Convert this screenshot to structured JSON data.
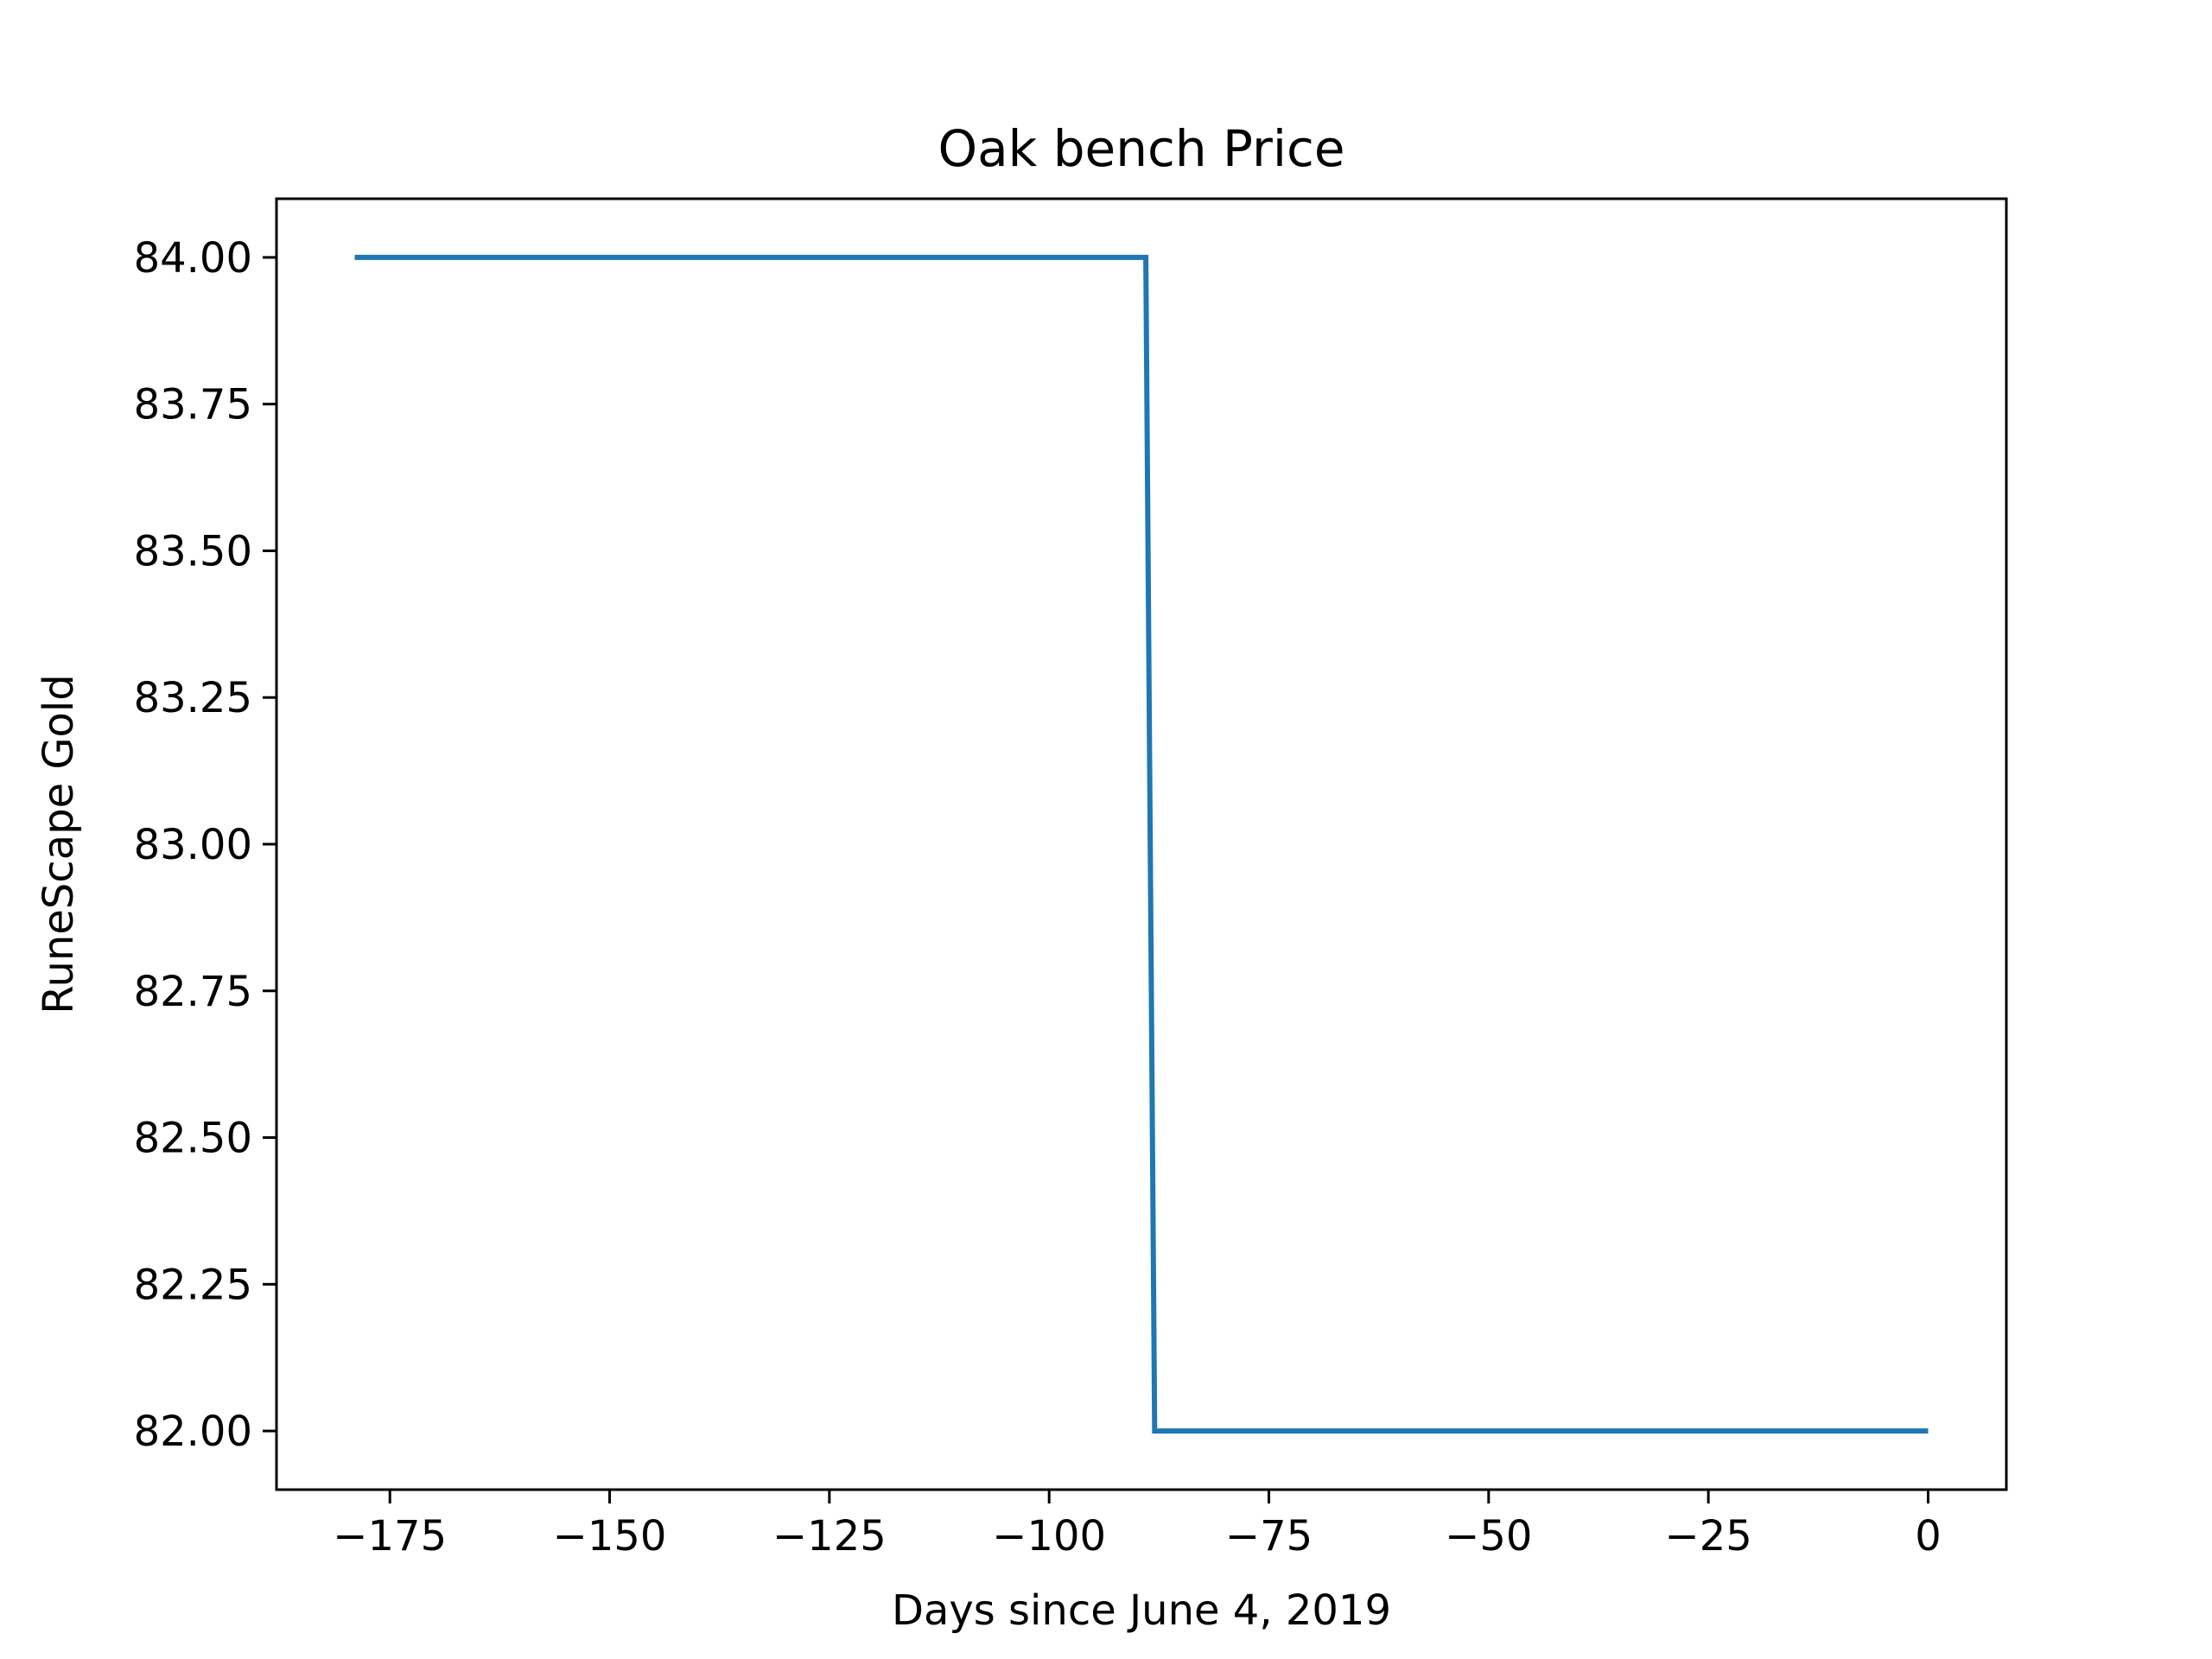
{
  "chart_data": {
    "type": "line",
    "title": "Oak bench Price",
    "xlabel": "Days since June 4, 2019",
    "ylabel": "RuneScape Gold",
    "xlim": [
      -187.9,
      8.9
    ],
    "ylim": [
      81.9,
      84.1
    ],
    "x_ticks": [
      -175,
      -150,
      -125,
      -100,
      -75,
      -50,
      -25,
      0
    ],
    "x_tick_labels": [
      "−175",
      "−150",
      "−125",
      "−100",
      "−75",
      "−50",
      "−25",
      "0"
    ],
    "y_ticks": [
      82.0,
      82.25,
      82.5,
      82.75,
      83.0,
      83.25,
      83.5,
      83.75,
      84.0
    ],
    "y_tick_labels": [
      "82.00",
      "82.25",
      "82.50",
      "82.75",
      "83.00",
      "83.25",
      "83.50",
      "83.75",
      "84.00"
    ],
    "grid": false,
    "colors": {
      "series": "#1f77b4",
      "axes": "#000000",
      "background": "#ffffff"
    },
    "series": [
      {
        "x": [
          -179,
          -89,
          -88,
          0
        ],
        "y": [
          84.0,
          84.0,
          82.0,
          82.0
        ]
      }
    ]
  }
}
